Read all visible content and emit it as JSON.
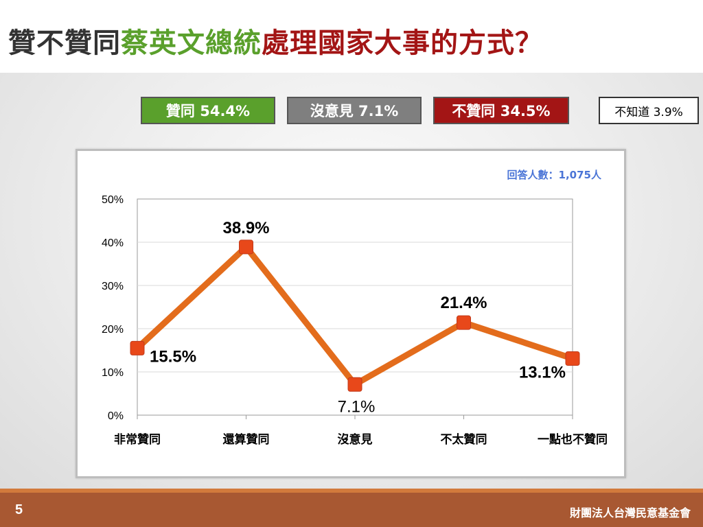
{
  "title": {
    "part1": "贊不贊同",
    "part2": "蔡英文總統",
    "part3": "處理國家大事的方式？",
    "color1": "#333333",
    "color2": "#5aa02c",
    "color3": "#a31515"
  },
  "summary": [
    {
      "label": "贊同 54.4%",
      "bg": "#5aa02c",
      "fg": "#ffffff"
    },
    {
      "label": "沒意見 7.1%",
      "bg": "#7f7f7f",
      "fg": "#ffffff"
    },
    {
      "label": "不贊同 34.5%",
      "bg": "#a31515",
      "fg": "#ffffff"
    },
    {
      "label": "不知道 3.9%",
      "bg": "#ffffff",
      "fg": "#000000"
    }
  ],
  "respondents": "回答人數：1,075人",
  "chart_data": {
    "type": "line",
    "categories": [
      "非常贊同",
      "還算贊同",
      "沒意見",
      "不太贊同",
      "一點也不贊同"
    ],
    "values": [
      15.5,
      38.9,
      7.1,
      21.4,
      13.1
    ],
    "data_labels": [
      "15.5%",
      "38.9%",
      "7.1%",
      "21.4%",
      "13.1%"
    ],
    "y_ticks": [
      "0%",
      "10%",
      "20%",
      "30%",
      "40%",
      "50%"
    ],
    "ylim": [
      0,
      50
    ],
    "grid": true,
    "line_color": "#e36c1c",
    "marker_color": "#e8481a"
  },
  "footer": {
    "page": "5",
    "org": "財團法人台灣民意基金會"
  }
}
